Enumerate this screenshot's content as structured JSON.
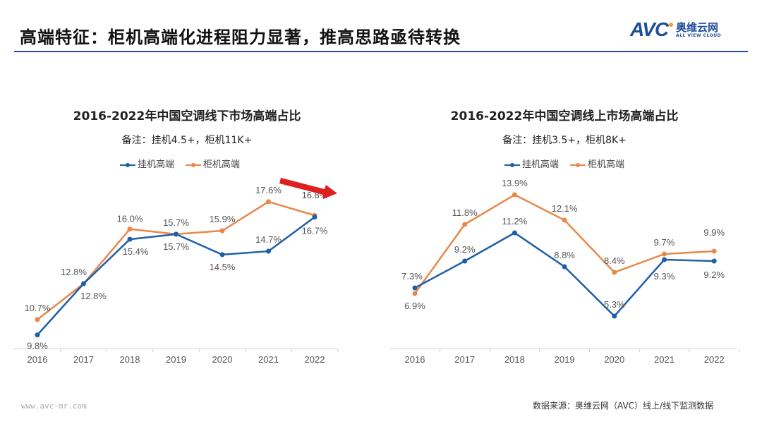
{
  "header": {
    "title": "高端特征：柜机高端化进程阻力显著，推高思路亟待转换",
    "logo_text": "AVC",
    "logo_cn": "奥维云网",
    "logo_en": "ALL VIEW CLOUD",
    "rule_color": "#1f4e9c"
  },
  "footer": {
    "url": "www.avc-mr.com",
    "source": "数据来源：奥维云网（AVC）线上/线下监测数据"
  },
  "watermark": "AVC 奥维云网 ALL VIEW CLOUD",
  "colors": {
    "blue": "#1f5fa8",
    "orange": "#e8884a",
    "arrow": "#e02020"
  },
  "chart_data": [
    {
      "type": "line",
      "title": "2016-2022年中国空调线下市场高端占比",
      "note": "备注：挂机4.5+，柜机11K+",
      "categories": [
        "2016",
        "2017",
        "2018",
        "2019",
        "2020",
        "2021",
        "2022"
      ],
      "series": [
        {
          "name": "挂机高端",
          "values": [
            9.8,
            12.8,
            15.4,
            15.7,
            14.5,
            14.7,
            16.7
          ],
          "labels": [
            "9.8%",
            "12.8%",
            "15.4%",
            "15.7%",
            "14.5%",
            "14.7%",
            "16.7%"
          ]
        },
        {
          "name": "柜机高端",
          "values": [
            10.7,
            12.8,
            16.0,
            15.7,
            15.9,
            17.6,
            16.8
          ],
          "labels": [
            "10.7%",
            "12.8%",
            "16.0%",
            "15.7%",
            "15.9%",
            "17.6%",
            "16.8%"
          ]
        }
      ],
      "ylim": [
        9,
        19
      ],
      "grid": false,
      "legend": "top",
      "annotation": "red arrow pointing right near 2022"
    },
    {
      "type": "line",
      "title": "2016-2022年中国空调线上市场高端占比",
      "note": "备注：挂机3.5+，柜机8K+",
      "categories": [
        "2016",
        "2017",
        "2018",
        "2019",
        "2020",
        "2021",
        "2022"
      ],
      "series": [
        {
          "name": "挂机高端",
          "values": [
            7.3,
            9.2,
            11.2,
            8.8,
            5.3,
            9.3,
            9.2
          ],
          "labels": [
            "7.3%",
            "9.2%",
            "11.2%",
            "8.8%",
            "5.3%",
            "9.3%",
            "9.2%"
          ]
        },
        {
          "name": "柜机高端",
          "values": [
            6.9,
            11.8,
            13.9,
            12.1,
            8.4,
            9.7,
            9.9
          ],
          "labels": [
            "6.9%",
            "11.8%",
            "13.9%",
            "12.1%",
            "8.4%",
            "9.7%",
            "9.9%"
          ]
        }
      ],
      "ylim": [
        3,
        15
      ],
      "grid": false,
      "legend": "top"
    }
  ]
}
